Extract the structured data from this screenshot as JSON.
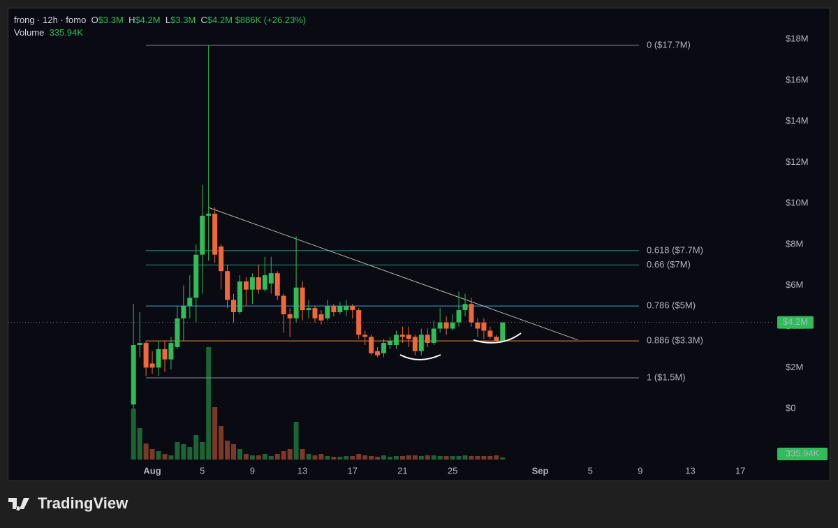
{
  "header": {
    "symbol": "frong · 12h · fomo",
    "o_label": "O",
    "open": "$3.3M",
    "h_label": "H",
    "high": "$4.2M",
    "l_label": "L",
    "low": "$3.3M",
    "c_label": "C",
    "close": "$4.2M",
    "change": "$886K (+26.23%)",
    "volume_label": "Volume",
    "volume": "335.94K"
  },
  "chart_data": {
    "type": "candlestick",
    "x": [
      -0.5,
      0,
      0.5,
      1,
      1.5,
      2,
      2.5,
      3,
      3.5,
      4,
      4.5,
      5,
      5.5,
      6,
      6.5,
      7,
      7.5,
      8,
      8.5,
      9,
      9.5,
      10,
      10.5,
      11,
      11.5,
      12,
      12.5,
      13,
      13.5,
      14,
      14.5,
      15,
      15.5,
      16,
      16.5,
      17,
      17.5,
      18,
      18.5,
      19,
      19.5,
      20,
      20.5,
      21,
      21.5,
      22,
      22.5,
      23,
      23.5,
      24,
      24.5,
      25,
      25.5,
      26,
      26.5,
      27,
      27.5,
      28,
      28.5,
      29
    ],
    "open": [
      0.2,
      3.1,
      3.2,
      2.2,
      2.0,
      2.9,
      2.4,
      3.0,
      4.4,
      5.0,
      5.4,
      7.5,
      9.4,
      9.5,
      7.9,
      6.7,
      5.3,
      4.7,
      6.2,
      5.8,
      6.4,
      5.8,
      6.1,
      6.6,
      5.5,
      4.6,
      4.4,
      5.9,
      4.8,
      4.9,
      4.6,
      4.4,
      5.0,
      4.7,
      4.8,
      5.0,
      4.8,
      3.6,
      3.5,
      2.8,
      2.7,
      3.1,
      3.1,
      3.6,
      3.6,
      3.5,
      2.8,
      3.6,
      3.2,
      3.9,
      4.2,
      3.9,
      4.2,
      4.8,
      5.1,
      4.2,
      4.2,
      3.8,
      3.5,
      3.3
    ],
    "high": [
      5.1,
      4.7,
      3.3,
      2.8,
      3.3,
      3.3,
      3.5,
      5.0,
      6.0,
      6.5,
      8.0,
      10.9,
      17.7,
      9.8,
      8.0,
      7.0,
      5.6,
      6.5,
      6.4,
      6.6,
      7.0,
      7.4,
      7.4,
      6.7,
      5.6,
      4.9,
      8.4,
      6.2,
      5.3,
      5.0,
      4.8,
      5.3,
      5.1,
      5.2,
      5.3,
      5.1,
      4.9,
      3.8,
      3.6,
      3.0,
      3.4,
      3.5,
      3.8,
      4.0,
      4.0,
      3.6,
      3.9,
      3.9,
      4.3,
      4.9,
      4.5,
      4.6,
      5.7,
      5.6,
      5.4,
      4.4,
      4.4,
      4.0,
      3.6,
      4.2
    ],
    "low": [
      0,
      2.5,
      1.6,
      1.7,
      1.6,
      1.8,
      1.9,
      2.9,
      3.3,
      4.4,
      4.2,
      5.6,
      7.2,
      7.1,
      5.8,
      4.9,
      4.2,
      4.6,
      5.0,
      5.1,
      5.6,
      5.7,
      5.6,
      5.3,
      3.7,
      3.5,
      4.2,
      4.3,
      4.4,
      4.2,
      4.1,
      4.3,
      4.5,
      4.6,
      4.5,
      4.4,
      3.4,
      3.1,
      2.6,
      2.5,
      2.5,
      2.9,
      2.9,
      3.2,
      3.0,
      2.6,
      2.6,
      3.0,
      3.1,
      3.7,
      3.6,
      3.8,
      4.0,
      4.5,
      4.0,
      3.5,
      3.4,
      3.4,
      3.2,
      3.3
    ],
    "close": [
      3.1,
      3.2,
      2.0,
      2.0,
      2.9,
      2.4,
      3.2,
      4.4,
      5.0,
      5.4,
      7.5,
      9.4,
      9.5,
      7.5,
      6.7,
      5.3,
      4.7,
      6.2,
      5.8,
      6.4,
      5.8,
      6.5,
      6.6,
      5.5,
      4.6,
      4.4,
      5.9,
      4.8,
      4.9,
      4.4,
      4.3,
      5.0,
      4.7,
      5.0,
      5.0,
      4.8,
      3.6,
      3.5,
      2.7,
      2.6,
      3.2,
      3.3,
      3.6,
      3.5,
      3.4,
      2.8,
      3.6,
      3.2,
      3.9,
      4.2,
      3.9,
      4.2,
      4.8,
      5.1,
      4.2,
      3.9,
      3.8,
      3.5,
      3.3,
      4.2
    ],
    "volume": [
      8176,
      5040,
      2576,
      1680,
      1344,
      896,
      672,
      2800,
      2464,
      2016,
      3920,
      2800,
      18032,
      8400,
      5376,
      3024,
      2464,
      1680,
      896,
      672,
      672,
      896,
      560,
      896,
      1344,
      1680,
      6048,
      1680,
      896,
      672,
      896,
      560,
      448,
      448,
      560,
      560,
      896,
      672,
      560,
      448,
      672,
      448,
      560,
      560,
      672,
      672,
      560,
      672,
      672,
      560,
      560,
      560,
      560,
      672,
      560,
      560,
      560,
      560,
      672,
      335.94
    ],
    "up_color": "#2ebd59",
    "down_color": "#f2673a",
    "xlim": [
      -10.5,
      50.5
    ],
    "xticks": [
      {
        "value": 1,
        "label": "Aug"
      },
      5,
      9,
      13,
      17,
      21,
      25,
      {
        "value": 32,
        "label": "Sep"
      },
      {
        "value": 36,
        "label": "5"
      },
      {
        "value": 40,
        "label": "9"
      },
      {
        "value": 44,
        "label": "13"
      },
      {
        "value": 48,
        "label": "17"
      }
    ],
    "ylim": [
      -3.5,
      19.5
    ],
    "yticks": [
      {
        "value": 0,
        "label": "$0"
      },
      {
        "value": 2,
        "label": "$2M"
      },
      {
        "value": 4,
        "label": "$4M"
      },
      {
        "value": 6,
        "label": "$6M"
      },
      {
        "value": 8,
        "label": "$8M"
      },
      {
        "value": 10,
        "label": "$10M"
      },
      {
        "value": 12,
        "label": "$12M"
      },
      {
        "value": 14,
        "label": "$14M"
      },
      {
        "value": 16,
        "label": "$16M"
      },
      {
        "value": 18,
        "label": "$18M"
      }
    ],
    "grid": false,
    "fib_levels": [
      {
        "value": 17.7,
        "label": "0 ($17.7M)",
        "color": "#8a8d96"
      },
      {
        "value": 7.7,
        "label": "0.618 ($7.7M)",
        "color": "#1f9d8a"
      },
      {
        "value": 7.0,
        "label": "0.66 ($7M)",
        "color": "#1f9d8a"
      },
      {
        "value": 5.0,
        "label": "0.786 ($5M)",
        "color": "#3aa6e0"
      },
      {
        "value": 3.3,
        "label": "0.886 ($3.3M)",
        "color": "#f0922b"
      },
      {
        "value": 1.5,
        "label": "1 ($1.5M)",
        "color": "#8a8d96"
      }
    ],
    "trendline": {
      "x": [
        5.5,
        35
      ],
      "y": [
        9.8,
        3.35
      ],
      "color": "#b8b8b8"
    },
    "last_price_label": "$4.2M"
  },
  "footer": {
    "brand": "TradingView"
  }
}
